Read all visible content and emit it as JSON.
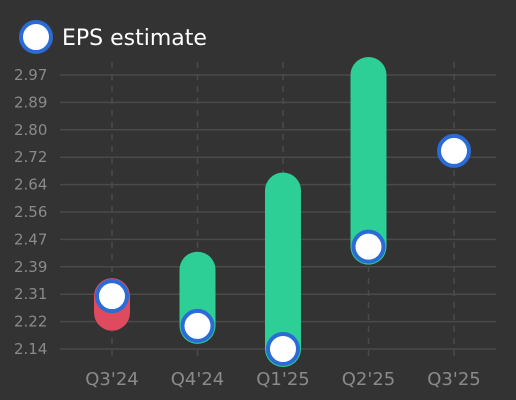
{
  "chart_data": {
    "type": "bar",
    "categories": [
      "Q3'24",
      "Q4'24",
      "Q1'25",
      "Q2'25",
      "Q3'25"
    ],
    "series": [
      {
        "name": "EPS estimate",
        "values": [
          2.3,
          2.21,
          2.14,
          2.45,
          2.74
        ]
      }
    ],
    "actual_values": [
      2.25,
      2.38,
      2.62,
      2.97,
      null
    ],
    "ylim": [
      2.14,
      2.97
    ],
    "yticks": [
      "2.97",
      "2.89",
      "2.80",
      "2.72",
      "2.64",
      "2.56",
      "2.47",
      "2.39",
      "2.31",
      "2.22",
      "2.14"
    ],
    "grid": true,
    "legend_position": "top-left",
    "title": "",
    "xlabel": "",
    "ylabel": ""
  },
  "colors": {
    "background": "#333333",
    "grid": "#4a4a4a",
    "beat": "#2ecf96",
    "miss": "#e04a5f",
    "marker_fill": "#ffffff",
    "marker_stroke": "#2a6bd6",
    "tick_text": "#8a8a8a",
    "legend_text": "#ffffff"
  },
  "legend": {
    "label": "EPS estimate",
    "icon": "estimate-circle-icon"
  }
}
